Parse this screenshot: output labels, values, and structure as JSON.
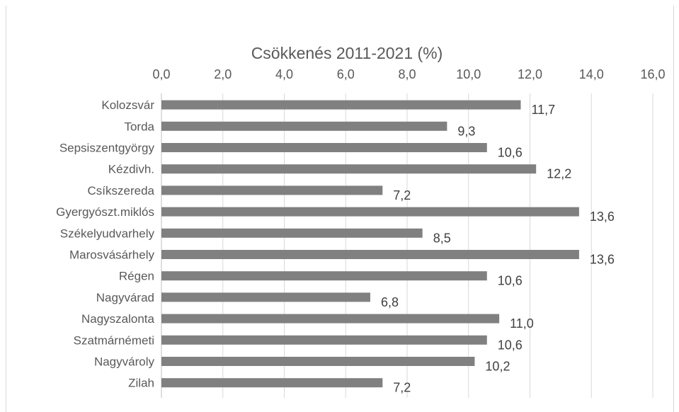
{
  "chart_data": {
    "type": "bar",
    "orientation": "horizontal",
    "title": "Csökkenés 2011-2021 (%)",
    "xlabel": "",
    "ylabel": "",
    "xlim": [
      0,
      16
    ],
    "x_ticks": [
      "0,0",
      "2,0",
      "4,0",
      "6,0",
      "8,0",
      "10,0",
      "12,0",
      "14,0",
      "16,0"
    ],
    "x_axis_position": "top",
    "grid": true,
    "legend": "none",
    "bar_color": "#808080",
    "categories": [
      "Kolozsvár",
      "Torda",
      "Sepsiszentgyörgy",
      "Kézdivh.",
      "Csíkszereda",
      "Gyergyószt.miklós",
      "Székelyudvarhely",
      "Marosvásárhely",
      "Régen",
      "Nagyvárad",
      "Nagyszalonta",
      "Szatmárnémeti",
      "Nagyvároly",
      "Zilah"
    ],
    "values": [
      11.7,
      9.3,
      10.6,
      12.2,
      7.2,
      13.6,
      8.5,
      13.6,
      10.6,
      6.8,
      11.0,
      10.6,
      10.2,
      7.2
    ],
    "value_labels": [
      "11,7",
      "9,3",
      "10,6",
      "12,2",
      "7,2",
      "13,6",
      "8,5",
      "13,6",
      "10,6",
      "6,8",
      "11,0",
      "10,6",
      "10,2",
      "7,2"
    ]
  }
}
